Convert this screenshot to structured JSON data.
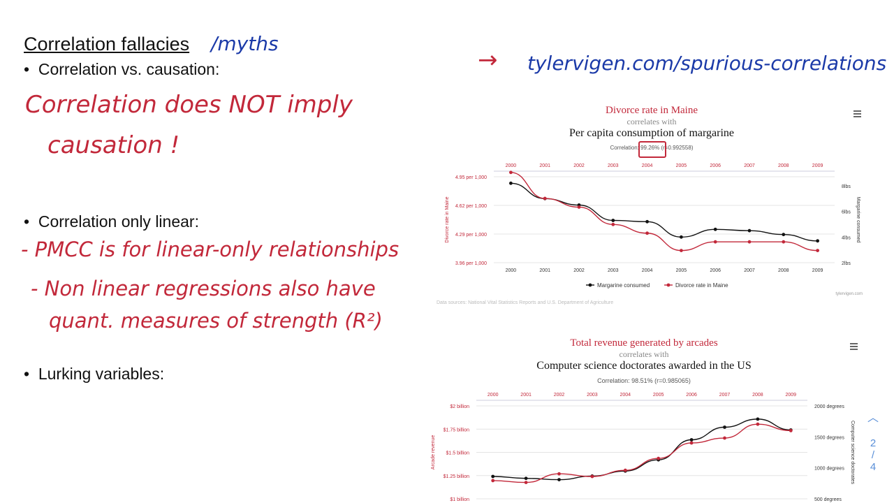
{
  "slide": {
    "title": "Correlation fallacies",
    "title_annotation": "/myths",
    "bullets": [
      "Correlation vs. causation:",
      "Correlation only linear:",
      "Lurking variables:"
    ],
    "notes": {
      "causation_line1": "Correlation does NOT imply",
      "causation_line2": "causation !",
      "linear_line1": "- PMCC is for linear-only relationships",
      "linear_line2": "- Non linear regressions also have",
      "linear_line3": "quant. measures of strength (R²)",
      "link": "tylervigen.com/spurious-correlations",
      "arrow": "→"
    },
    "pager": {
      "up_icon": "chevron-up-icon",
      "current": "2",
      "separator": "/",
      "total": "4"
    }
  },
  "colors": {
    "accent_red": "#c2283a",
    "series_black": "#111111",
    "ink_blue": "#1b3aa8"
  },
  "chart_data": [
    {
      "type": "line",
      "title": "Divorce rate in Maine",
      "subtitle": "correlates with",
      "title2": "Per capita consumption of margarine",
      "correlation": "Correlation: 99.26% (r=0.992558)",
      "x": [
        "2000",
        "2001",
        "2002",
        "2003",
        "2004",
        "2005",
        "2006",
        "2007",
        "2008",
        "2009"
      ],
      "left_axis": {
        "label": "Divorce rate in Maine",
        "ticks": [
          "4.95 per 1,000",
          "4.62 per 1,000",
          "4.29 per 1,000",
          "3.96 per 1,000"
        ],
        "range": [
          3.96,
          4.95
        ]
      },
      "right_axis": {
        "label": "Margarine consumed",
        "ticks": [
          "8lbs",
          "6lbs",
          "4lbs",
          "2lbs"
        ],
        "range": [
          2,
          8
        ]
      },
      "series": [
        {
          "name": "Margarine consumed",
          "axis": "right",
          "color": "#111111",
          "values": [
            8.2,
            7.0,
            6.5,
            5.3,
            5.2,
            4.0,
            4.6,
            4.5,
            4.2,
            3.7
          ]
        },
        {
          "name": "Divorce rate in Maine",
          "axis": "left",
          "color": "#c2283a",
          "values": [
            5.0,
            4.7,
            4.6,
            4.4,
            4.3,
            4.1,
            4.2,
            4.2,
            4.2,
            4.1
          ]
        }
      ],
      "data_sources": "Data sources: National Vital Statistics Reports and U.S. Department of Agriculture",
      "credit": "tylervigen.com",
      "menu_icon": "hamburger-menu-icon",
      "legend": "bottom-center",
      "grid": true
    },
    {
      "type": "line",
      "title": "Total revenue generated by arcades",
      "subtitle": "correlates with",
      "title2": "Computer science doctorates awarded in the US",
      "correlation": "Correlation: 98.51% (r=0.985065)",
      "x": [
        "2000",
        "2001",
        "2002",
        "2003",
        "2004",
        "2005",
        "2006",
        "2007",
        "2008",
        "2009"
      ],
      "left_axis": {
        "label": "Arcade revenue",
        "ticks": [
          "$2 billion",
          "$1.75 billion",
          "$1.5 billion",
          "$1.25 billion",
          "$1 billion"
        ],
        "range": [
          1.0,
          2.0
        ]
      },
      "right_axis": {
        "label": "Computer science doctorates",
        "ticks": [
          "2000 degrees",
          "1500 degrees",
          "1000 degrees",
          "500 degrees"
        ],
        "range": [
          500,
          2000
        ]
      },
      "series": [
        {
          "name": "Computer science doctorates awarded in the US",
          "axis": "right",
          "color": "#111111",
          "values": [
            861,
            830,
            809,
            867,
            948,
            1129,
            1453,
            1656,
            1787,
            1611
          ]
        },
        {
          "name": "Total revenue generated by arcades",
          "axis": "left",
          "color": "#c2283a",
          "values": [
            1.196,
            1.176,
            1.269,
            1.24,
            1.307,
            1.435,
            1.601,
            1.654,
            1.803,
            1.734
          ]
        }
      ],
      "menu_icon": "hamburger-menu-icon",
      "grid": true
    }
  ]
}
